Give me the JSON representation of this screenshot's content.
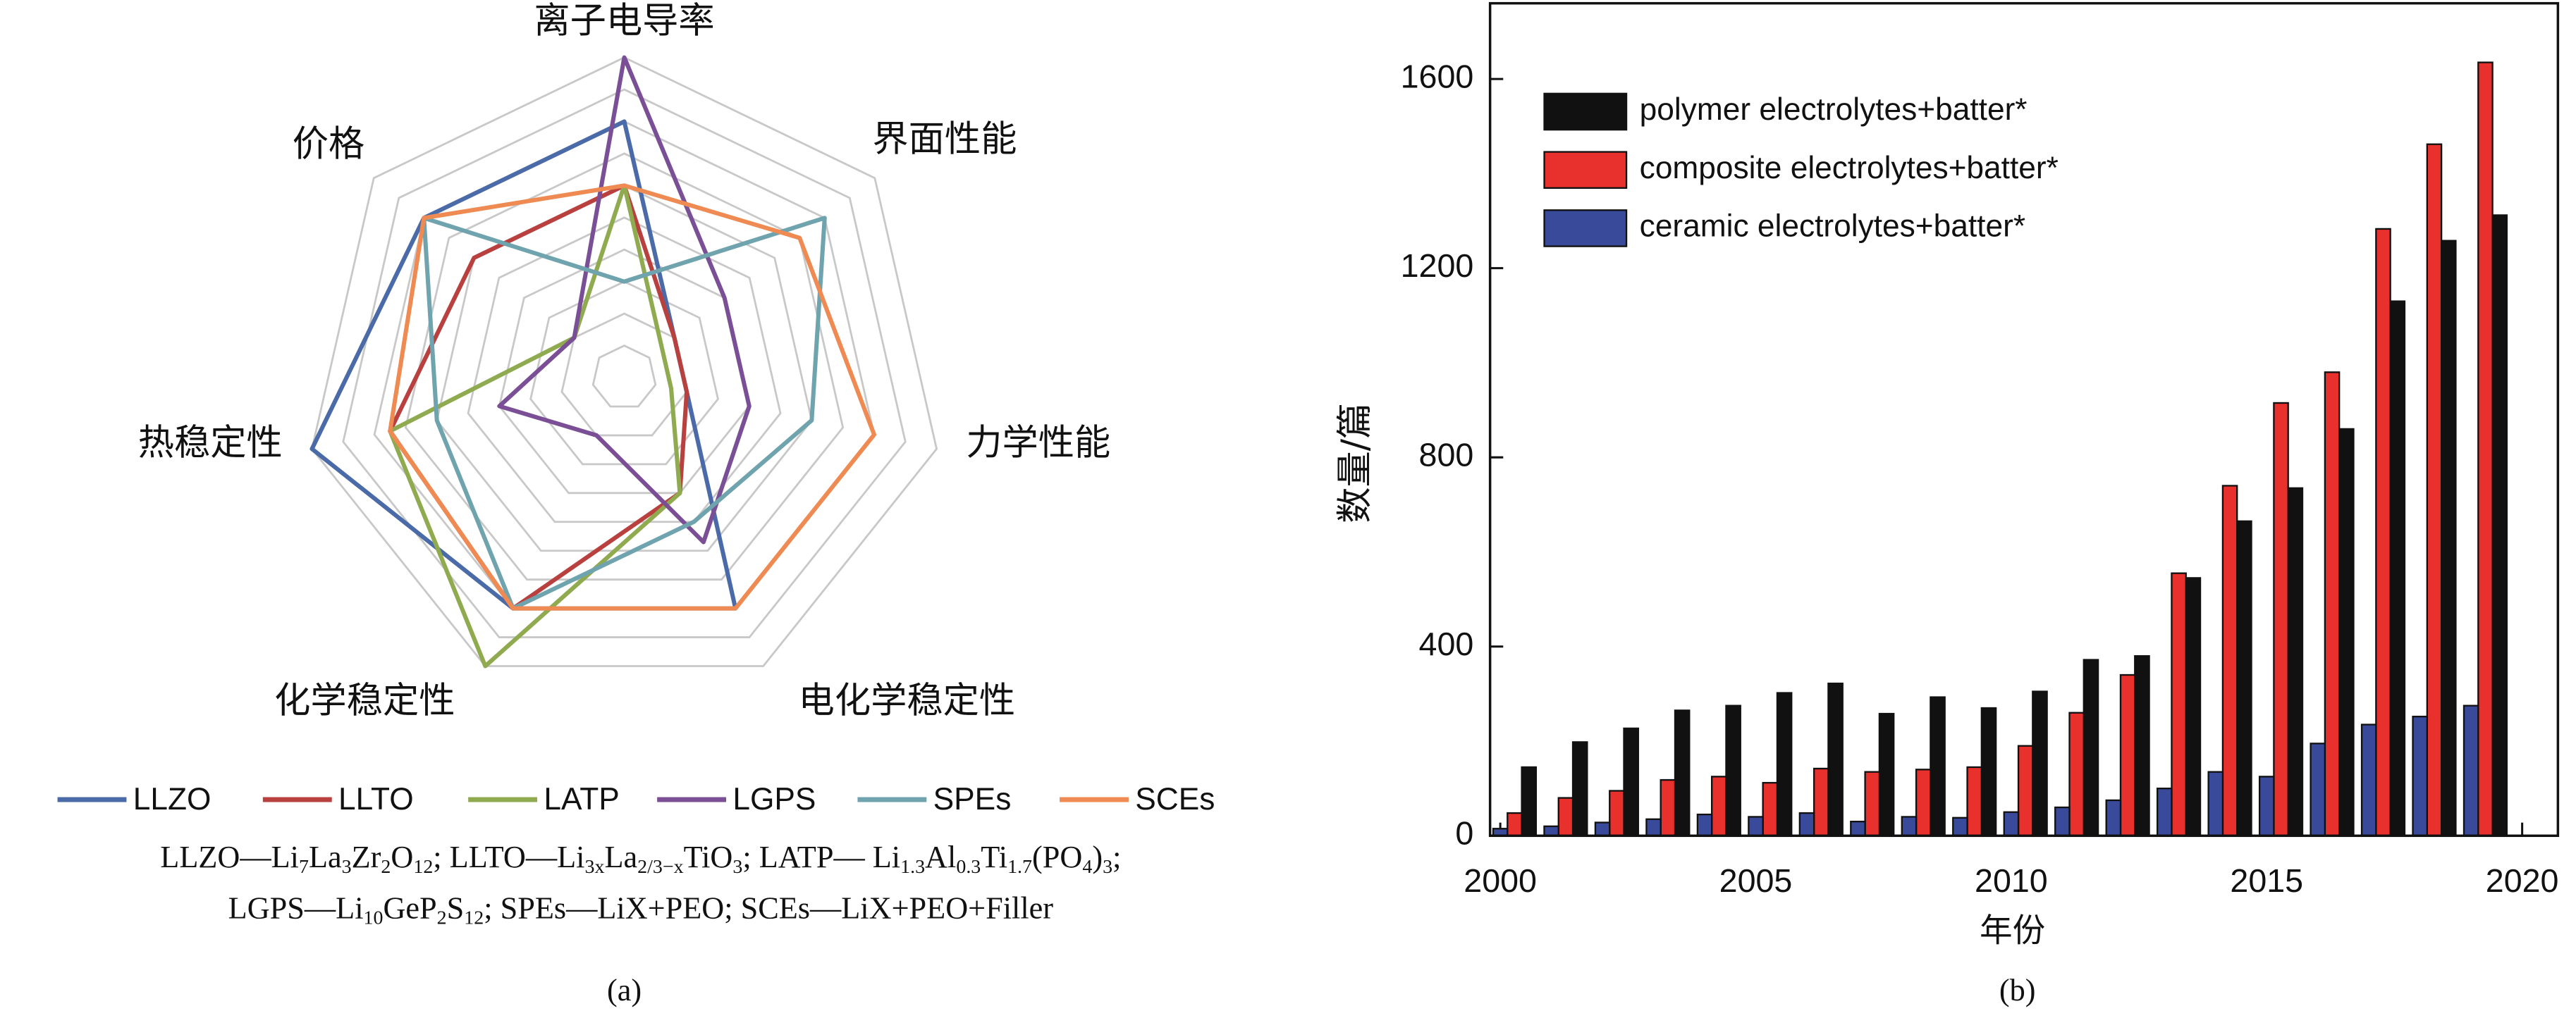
{
  "chart_data": [
    {
      "type": "radar",
      "categories": [
        "离子电导率",
        "界面性能",
        "力学性能",
        "电化学稳定性",
        "化学稳定性",
        "热稳定性",
        "价格"
      ],
      "series": [
        {
          "name": "LLZO",
          "color": "#4a6aa8",
          "values": [
            8,
            2,
            2,
            8,
            8,
            10,
            8
          ]
        },
        {
          "name": "LLTO",
          "color": "#b8413f",
          "values": [
            6,
            2,
            2,
            4,
            8,
            7.5,
            6
          ]
        },
        {
          "name": "LATP",
          "color": "#8faa4f",
          "values": [
            6,
            1.5,
            1.5,
            4,
            10,
            7.5,
            2
          ]
        },
        {
          "name": "LGPS",
          "color": "#7a4f96",
          "values": [
            10,
            4,
            4,
            5.7,
            2,
            4,
            2
          ]
        },
        {
          "name": "SPEs",
          "color": "#6fa3ad",
          "values": [
            3,
            8,
            6,
            5,
            8,
            6,
            8
          ]
        },
        {
          "name": "SCEs",
          "color": "#ee8a52",
          "values": [
            6,
            7,
            8,
            8,
            8,
            7.5,
            8
          ]
        }
      ],
      "ylim": [
        0,
        10
      ],
      "yticks": [
        1,
        2,
        3,
        4,
        5,
        6,
        7,
        8,
        9,
        10
      ],
      "grid": true,
      "notes": [
        [
          "LLZO—Li",
          "7",
          "La",
          "3",
          "Zr",
          "2",
          "O",
          "12",
          "; LLTO—Li",
          "3x",
          "La",
          "2/3−x",
          "TiO",
          "3",
          "; LATP— Li",
          "1.3",
          "Al",
          "0.3",
          "Ti",
          "1.7",
          "(PO",
          "4",
          ")",
          "3",
          ";"
        ],
        [
          "LGPS—Li",
          "10",
          "GeP",
          "2",
          "S",
          "12",
          "; SPEs—LiX+PEO;  SCEs—LiX+PEO+Filler"
        ]
      ],
      "caption": "(a)"
    },
    {
      "type": "bar",
      "x": [
        2000,
        2001,
        2002,
        2003,
        2004,
        2005,
        2006,
        2007,
        2008,
        2009,
        2010,
        2011,
        2012,
        2013,
        2014,
        2015,
        2016,
        2017,
        2018,
        2019
      ],
      "series": [
        {
          "name": "polymer electrolytes+batter*",
          "color": "#111111",
          "values": [
            145,
            198,
            227,
            265,
            275,
            302,
            322,
            258,
            293,
            270,
            305,
            372,
            380,
            545,
            665,
            735,
            860,
            1130,
            1258,
            1312
          ]
        },
        {
          "name": "composite electrolytes+batter*",
          "color": "#e8302c",
          "values": [
            48,
            80,
            95,
            118,
            125,
            112,
            142,
            135,
            140,
            145,
            190,
            260,
            340,
            555,
            740,
            915,
            980,
            1283,
            1462,
            1635
          ]
        },
        {
          "name": "ceramic electrolytes+batter*",
          "color": "#3a4a9a",
          "values": [
            15,
            20,
            28,
            35,
            45,
            40,
            48,
            30,
            40,
            38,
            50,
            60,
            75,
            100,
            135,
            125,
            195,
            235,
            252,
            275
          ]
        }
      ],
      "xlim": [
        1999.8,
        2020.7
      ],
      "xticks": [
        2000,
        2005,
        2010,
        2015,
        2020
      ],
      "ylim": [
        0,
        1760
      ],
      "yticks": [
        0,
        400,
        800,
        1200,
        1600
      ],
      "xlabel": "年份",
      "ylabel": "数量/篇",
      "legend": "upper left",
      "caption": "(b)"
    }
  ]
}
